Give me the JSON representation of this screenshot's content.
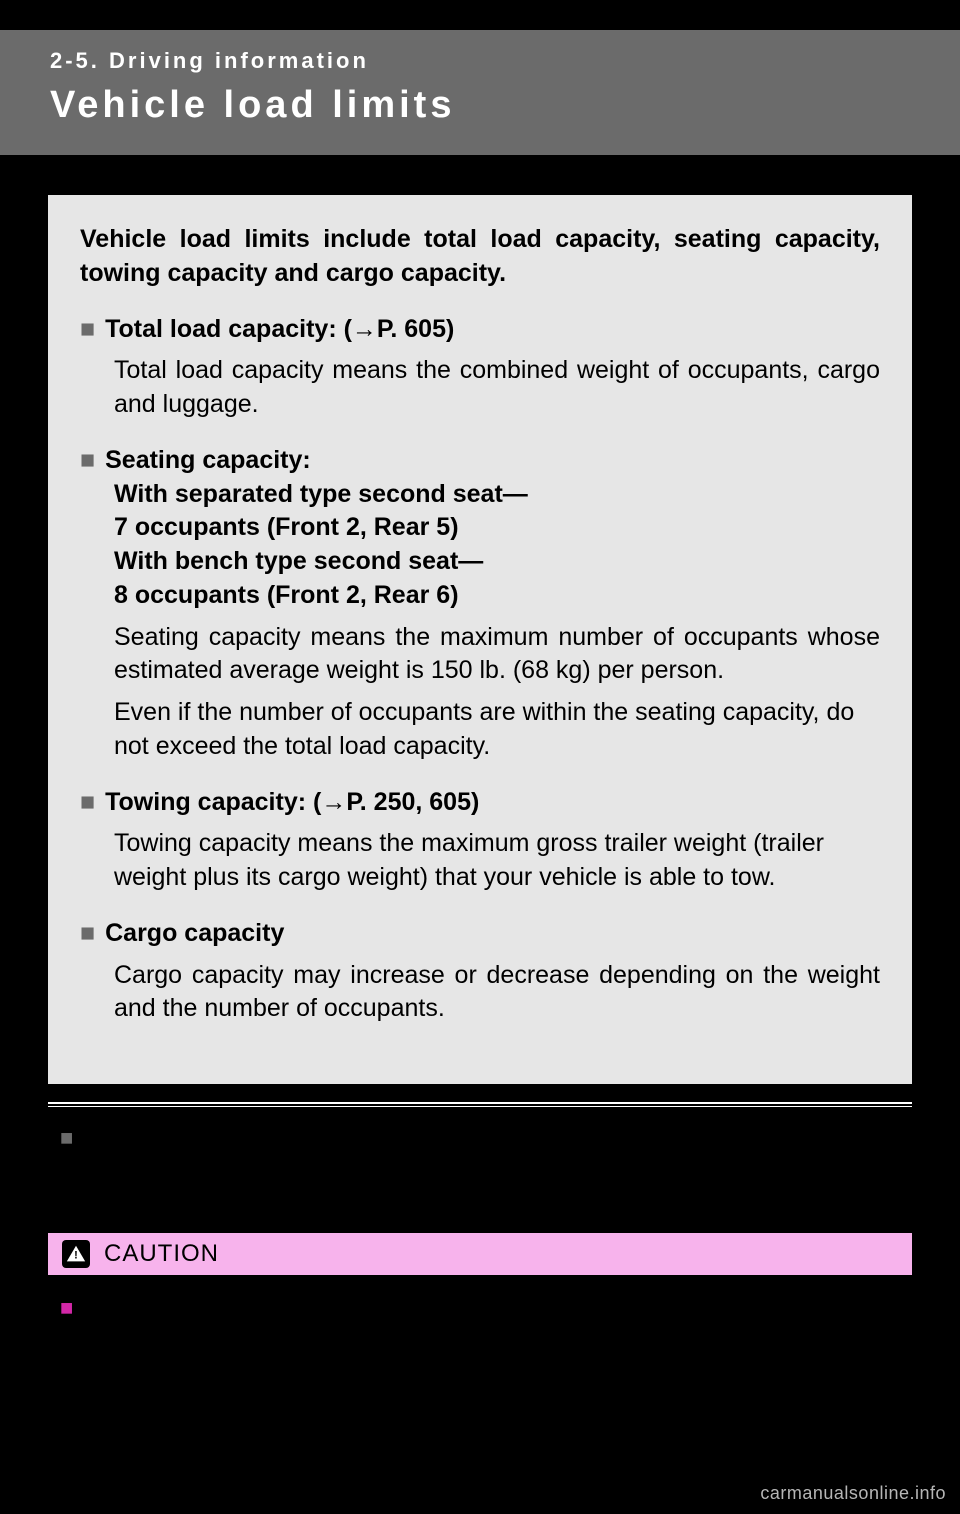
{
  "header": {
    "section": "2-5. Driving information",
    "title": "Vehicle load limits"
  },
  "graybox": {
    "intro": "Vehicle load limits include total load capacity, seating capacity, towing capacity and cargo capacity.",
    "items": [
      {
        "heading": "Total load capacity: (→P. 605)",
        "paragraphs": [
          {
            "text": "Total load capacity means the combined weight of occupants, cargo and luggage.",
            "justify": true
          }
        ]
      },
      {
        "heading": "Seating capacity:",
        "subheads": [
          "With separated type second seat—",
          "7 occupants (Front 2, Rear 5)",
          "With bench type second seat—",
          "8 occupants (Front 2, Rear 6)"
        ],
        "paragraphs": [
          {
            "text": "Seating capacity means the maximum number of occupants whose estimated average weight is 150 lb. (68 kg) per person.",
            "justify": true
          },
          {
            "text": "Even if the number of occupants are within the seating capacity, do not exceed the total load capacity.",
            "justify": false
          }
        ]
      },
      {
        "heading": "Towing capacity: (→P. 250, 605)",
        "paragraphs": [
          {
            "text": "Towing capacity means the maximum gross trailer weight (trailer weight plus its cargo weight) that your vehicle is able to tow.",
            "justify": false
          }
        ]
      },
      {
        "heading": "Cargo capacity",
        "paragraphs": [
          {
            "text": "Cargo capacity may increase or decrease depending on the weight and the number of occupants.",
            "justify": true
          }
        ]
      }
    ]
  },
  "caution": {
    "label": "CAUTION"
  },
  "watermark": "carmanualsonline.info",
  "colors": {
    "header_bg": "#6b6b6b",
    "graybox_bg": "#e6e6e6",
    "caution_bg": "#f7b3ec",
    "magenta_square": "#d328a8",
    "gray_square": "#6b6b6b",
    "page_bg": "#000000",
    "watermark": "#b6b6b6"
  }
}
